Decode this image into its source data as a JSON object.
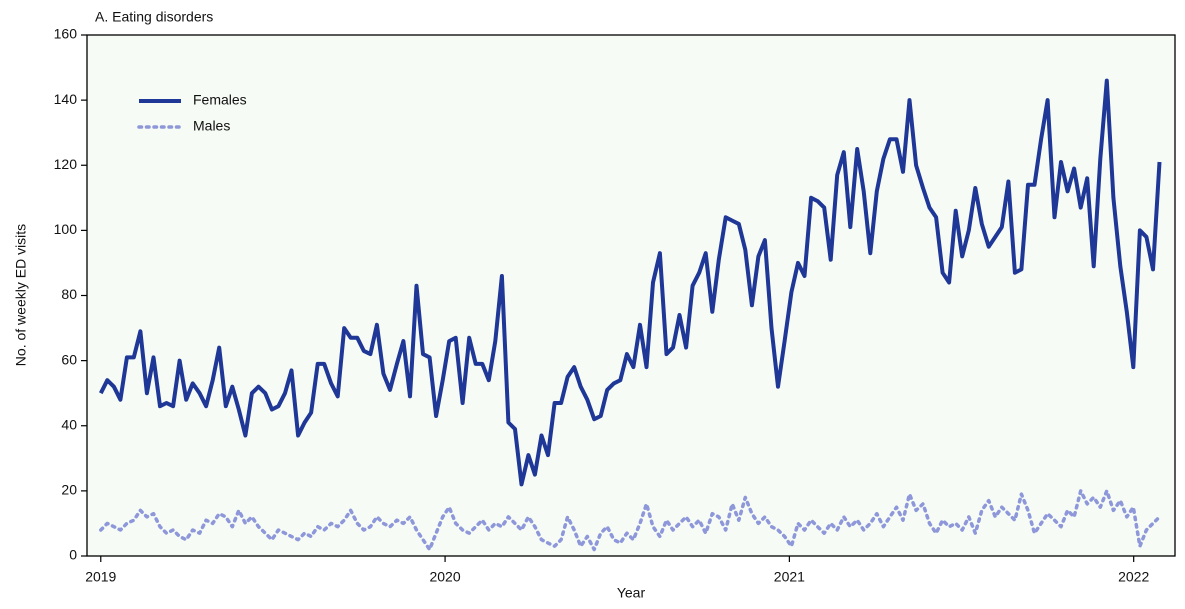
{
  "chart_data": {
    "type": "line",
    "title": "A. Eating disorders",
    "xlabel": "Year",
    "ylabel": "No. of weekly ED visits",
    "xlim": [
      2018.96,
      2022.12
    ],
    "xticks": [
      2019,
      2020,
      2021,
      2022
    ],
    "ylim": [
      0,
      160
    ],
    "yticks": [
      0,
      20,
      40,
      60,
      80,
      100,
      120,
      140,
      160
    ],
    "legend": "upper left",
    "x": [
      2019.0,
      2019.019,
      2019.038,
      2019.057,
      2019.076,
      2019.096,
      2019.115,
      2019.134,
      2019.153,
      2019.172,
      2019.191,
      2019.21,
      2019.229,
      2019.248,
      2019.267,
      2019.287,
      2019.306,
      2019.325,
      2019.344,
      2019.363,
      2019.382,
      2019.401,
      2019.42,
      2019.439,
      2019.458,
      2019.478,
      2019.497,
      2019.516,
      2019.535,
      2019.554,
      2019.573,
      2019.592,
      2019.611,
      2019.63,
      2019.649,
      2019.669,
      2019.688,
      2019.707,
      2019.726,
      2019.745,
      2019.764,
      2019.783,
      2019.802,
      2019.821,
      2019.84,
      2019.86,
      2019.879,
      2019.898,
      2019.917,
      2019.936,
      2019.955,
      2019.974,
      2019.993,
      2020.012,
      2020.031,
      2020.051,
      2020.07,
      2020.089,
      2020.108,
      2020.127,
      2020.146,
      2020.165,
      2020.184,
      2020.203,
      2020.222,
      2020.242,
      2020.261,
      2020.28,
      2020.299,
      2020.318,
      2020.337,
      2020.356,
      2020.375,
      2020.394,
      2020.413,
      2020.433,
      2020.452,
      2020.471,
      2020.49,
      2020.509,
      2020.528,
      2020.547,
      2020.566,
      2020.585,
      2020.604,
      2020.624,
      2020.643,
      2020.662,
      2020.681,
      2020.7,
      2020.719,
      2020.738,
      2020.757,
      2020.776,
      2020.795,
      2020.815,
      2020.834,
      2020.853,
      2020.872,
      2020.891,
      2020.91,
      2020.929,
      2020.948,
      2020.967,
      2020.986,
      2021.006,
      2021.025,
      2021.044,
      2021.063,
      2021.082,
      2021.101,
      2021.12,
      2021.139,
      2021.158,
      2021.177,
      2021.197,
      2021.216,
      2021.235,
      2021.254,
      2021.273,
      2021.292,
      2021.311,
      2021.33,
      2021.349,
      2021.368,
      2021.388,
      2021.407,
      2021.426,
      2021.445,
      2021.464,
      2021.483,
      2021.502,
      2021.521,
      2021.54,
      2021.559,
      2021.579,
      2021.598,
      2021.617,
      2021.636,
      2021.655,
      2021.674,
      2021.693,
      2021.712,
      2021.731,
      2021.75,
      2021.77,
      2021.789,
      2021.808,
      2021.827,
      2021.846,
      2021.865,
      2021.884,
      2021.903,
      2021.922,
      2021.941,
      2021.961,
      2021.98,
      2021.999,
      2022.018,
      2022.037,
      2022.056,
      2022.075
    ],
    "series": [
      {
        "name": "Females",
        "color": "#1f3796",
        "style": "solid",
        "values": [
          50,
          54,
          52,
          48,
          61,
          61,
          69,
          50,
          61,
          46,
          47,
          46,
          60,
          48,
          53,
          50,
          46,
          54,
          64,
          46,
          52,
          45,
          37,
          50,
          52,
          50,
          45,
          46,
          50,
          57,
          37,
          41,
          44,
          59,
          59,
          53,
          49,
          70,
          67,
          67,
          63,
          62,
          71,
          56,
          51,
          59,
          66,
          49,
          83,
          62,
          61,
          43,
          54,
          66,
          67,
          47,
          67,
          59,
          59,
          54,
          66,
          86,
          41,
          39,
          22,
          31,
          25,
          37,
          31,
          47,
          47,
          55,
          58,
          52,
          48,
          42,
          43,
          51,
          53,
          54,
          62,
          58,
          71,
          58,
          84,
          93,
          62,
          64,
          74,
          64,
          83,
          87,
          93,
          75,
          91,
          104,
          103,
          102,
          94,
          77,
          92,
          97,
          70,
          52,
          66,
          81,
          90,
          86,
          110,
          109,
          107,
          91,
          117,
          124,
          101,
          125,
          112,
          93,
          112,
          122,
          128,
          128,
          118,
          140,
          120,
          113,
          107,
          104,
          87,
          84,
          106,
          92,
          100,
          113,
          102,
          95,
          98,
          101,
          115,
          87,
          88,
          114,
          114,
          128,
          140,
          104,
          121,
          112,
          119,
          107,
          116,
          89,
          122,
          146,
          110,
          89,
          75,
          58,
          100,
          98,
          88,
          121
        ]
      },
      {
        "name": "Males",
        "color": "#8d97d9",
        "style": "dotted",
        "values": [
          8,
          10,
          9,
          8,
          10,
          11,
          14,
          12,
          13,
          9,
          7,
          8,
          6,
          5,
          8,
          7,
          11,
          10,
          13,
          12,
          9,
          14,
          10,
          12,
          9,
          7,
          5,
          8,
          7,
          6,
          5,
          7,
          6,
          9,
          8,
          10,
          9,
          11,
          14,
          10,
          8,
          9,
          12,
          10,
          9,
          11,
          10,
          12,
          8,
          5,
          2,
          7,
          12,
          15,
          10,
          8,
          7,
          9,
          11,
          8,
          10,
          9,
          12,
          10,
          8,
          12,
          9,
          5,
          4,
          3,
          5,
          12,
          8,
          3,
          6,
          2,
          7,
          9,
          5,
          4,
          7,
          5,
          10,
          16,
          9,
          6,
          11,
          8,
          10,
          12,
          9,
          11,
          7,
          13,
          12,
          8,
          16,
          11,
          18,
          13,
          10,
          12,
          9,
          8,
          6,
          3,
          10,
          8,
          11,
          9,
          7,
          10,
          8,
          12,
          9,
          11,
          8,
          10,
          13,
          9,
          12,
          15,
          11,
          19,
          14,
          16,
          10,
          7,
          11,
          9,
          10,
          8,
          12,
          7,
          14,
          17,
          12,
          15,
          13,
          11,
          19,
          14,
          7,
          10,
          13,
          11,
          9,
          14,
          12,
          20,
          16,
          18,
          15,
          20,
          14,
          17,
          12,
          15,
          3,
          8,
          10,
          12
        ]
      }
    ]
  }
}
